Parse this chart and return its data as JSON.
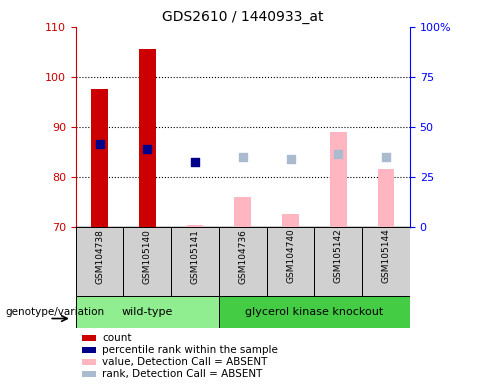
{
  "title": "GDS2610 / 1440933_at",
  "samples": [
    "GSM104738",
    "GSM105140",
    "GSM105141",
    "GSM104736",
    "GSM104740",
    "GSM105142",
    "GSM105144"
  ],
  "wt_count": 3,
  "ko_count": 4,
  "ylim_left": [
    70,
    110
  ],
  "ylim_right": [
    0,
    100
  ],
  "yticks_left": [
    70,
    80,
    90,
    100,
    110
  ],
  "ytick_labels_left": [
    "70",
    "80",
    "90",
    "100",
    "110"
  ],
  "yticks_right_vals": [
    70,
    80,
    90,
    100,
    110
  ],
  "yticks_right_labels": [
    "0",
    "25",
    "50",
    "75",
    "100%"
  ],
  "red_bars": {
    "GSM104738": 97.5,
    "GSM105140": 105.5
  },
  "blue_dots": {
    "GSM104738": 86.5,
    "GSM105140": 85.5,
    "GSM105141": 83.0
  },
  "pink_bars": {
    "GSM105141": 70.4,
    "GSM104736": 76.0,
    "GSM104740": 72.5,
    "GSM105142": 89.0,
    "GSM105144": 81.5
  },
  "light_blue_dots": {
    "GSM104736": 84.0,
    "GSM104740": 83.5,
    "GSM105142": 84.5,
    "GSM105144": 84.0
  },
  "bar_bottom": 70,
  "bar_width": 0.35,
  "dot_size": 30,
  "red_color": "#CC0000",
  "blue_color": "#00008B",
  "pink_color": "#FFB6C1",
  "light_blue_color": "#AABBD0",
  "wt_color": "#90EE90",
  "ko_color": "#44CC44",
  "gray_color": "#D0D0D0",
  "grid_color": "black",
  "legend_items": [
    {
      "label": "count",
      "color": "#CC0000"
    },
    {
      "label": "percentile rank within the sample",
      "color": "#00008B"
    },
    {
      "label": "value, Detection Call = ABSENT",
      "color": "#FFB6C1"
    },
    {
      "label": "rank, Detection Call = ABSENT",
      "color": "#AABBD0"
    }
  ],
  "group_label_text": "genotype/variation"
}
